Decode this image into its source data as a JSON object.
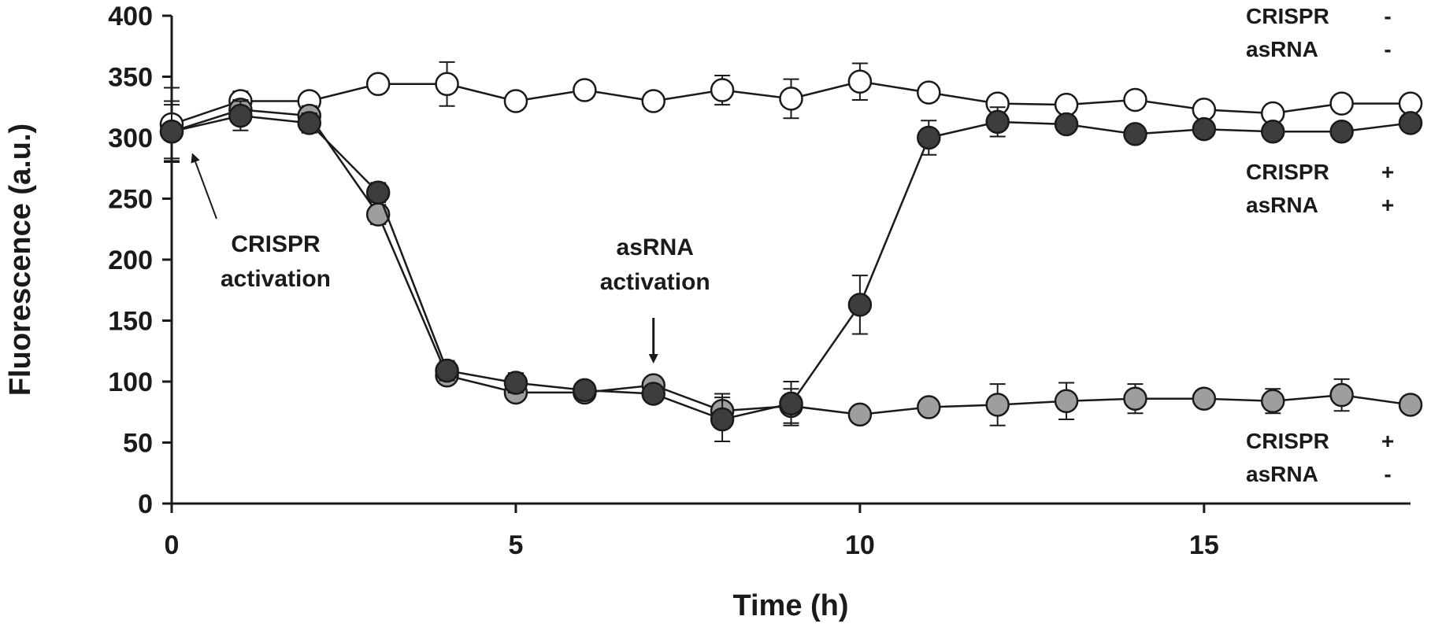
{
  "chart_data": {
    "type": "line",
    "xlabel": "Time (h)",
    "ylabel": "Fluorescence (a.u.)",
    "xlim": [
      0,
      18
    ],
    "ylim": [
      0,
      400
    ],
    "xticks": [
      0,
      5,
      10,
      15
    ],
    "yticks": [
      0,
      50,
      100,
      150,
      200,
      250,
      300,
      350,
      400
    ],
    "grid": false,
    "series": [
      {
        "key": "crispr-minus-asrna-minus",
        "color": "#ffffff",
        "x": [
          0,
          1,
          2,
          3,
          4,
          5,
          6,
          7,
          8,
          9,
          10,
          11,
          12,
          13,
          14,
          15,
          16,
          17,
          18
        ],
        "y": [
          311,
          330,
          330,
          344,
          344,
          330,
          339,
          330,
          339,
          332,
          346,
          337,
          328,
          327,
          331,
          323,
          320,
          328,
          328
        ],
        "err": [
          30,
          8,
          5,
          5,
          18,
          5,
          5,
          5,
          12,
          16,
          15,
          5,
          5,
          5,
          5,
          5,
          5,
          5,
          5
        ]
      },
      {
        "key": "crispr-plus-asrna-minus",
        "color": "#9e9e9e",
        "x": [
          0,
          1,
          2,
          3,
          4,
          5,
          6,
          7,
          8,
          9,
          10,
          11,
          12,
          13,
          14,
          15,
          16,
          17,
          18
        ],
        "y": [
          305,
          323,
          318,
          237,
          105,
          91,
          91,
          97,
          76,
          80,
          73,
          79,
          81,
          84,
          86,
          86,
          84,
          89,
          81
        ],
        "err": [
          25,
          8,
          8,
          8,
          5,
          5,
          5,
          5,
          14,
          14,
          5,
          5,
          17,
          15,
          12,
          5,
          10,
          13,
          5
        ]
      },
      {
        "key": "crispr-plus-asrna-plus",
        "color": "#3d3d3d",
        "x": [
          0,
          1,
          2,
          3,
          4,
          5,
          6,
          7,
          8,
          9,
          10,
          11,
          12,
          13,
          14,
          15,
          16,
          17,
          18
        ],
        "y": [
          305,
          318,
          312,
          255,
          109,
          99,
          93,
          90,
          69,
          82,
          163,
          300,
          313,
          311,
          303,
          307,
          305,
          305,
          312
        ],
        "err": [
          22,
          12,
          8,
          8,
          8,
          8,
          5,
          5,
          18,
          18,
          24,
          14,
          12,
          5,
          5,
          5,
          5,
          5,
          5
        ]
      }
    ],
    "series_labels": [
      {
        "series": "crispr-minus-asrna-minus",
        "line1": "CRISPR",
        "sign1": "-",
        "line2": "asRNA",
        "sign2": "-"
      },
      {
        "series": "crispr-plus-asrna-plus",
        "line1": "CRISPR",
        "sign1": "+",
        "line2": "asRNA",
        "sign2": "+"
      },
      {
        "series": "crispr-plus-asrna-minus",
        "line1": "CRISPR",
        "sign1": "+",
        "line2": "asRNA",
        "sign2": "-"
      }
    ],
    "annotations": [
      {
        "name": "crispr-activation",
        "line1": "CRISPR",
        "line2": "activation",
        "x": 0
      },
      {
        "name": "asrna-activation",
        "line1": "asRNA",
        "line2": "activation",
        "x": 7
      }
    ]
  }
}
